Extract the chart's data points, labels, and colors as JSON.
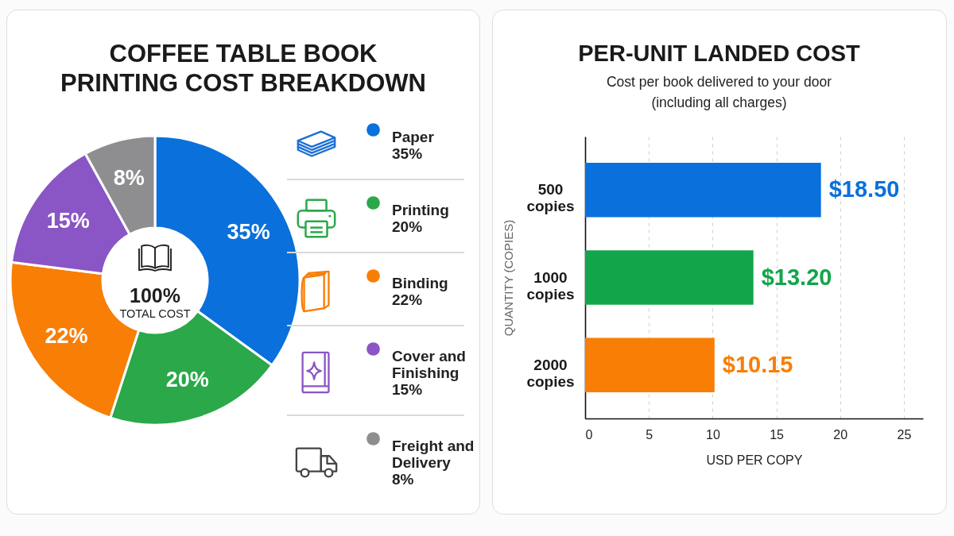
{
  "chart_data": [
    {
      "type": "donut",
      "title": "COFFEE TABLE BOOK PRINTING COST BREAKDOWN",
      "categories": [
        "Paper",
        "Printing",
        "Binding",
        "Cover and Finishing",
        "Freight and Delivery"
      ],
      "values": [
        35,
        20,
        22,
        15,
        8
      ],
      "colors": [
        "#0a70dc",
        "#2aa84a",
        "#f87e06",
        "#8a55c4",
        "#8e8e90"
      ],
      "value_labels": [
        "35%",
        "20%",
        "22%",
        "15%",
        "8%"
      ],
      "legend": "right",
      "annotations": [
        "100%",
        "TOTAL COST"
      ]
    },
    {
      "type": "bar",
      "orientation": "horizontal",
      "title": "PER-UNIT LANDED COST",
      "subtitle": "Cost per book delivered to your door (including all charges)",
      "categories": [
        "500 copies",
        "1000 copies",
        "2000 copies"
      ],
      "values": [
        18.5,
        13.2,
        10.15
      ],
      "colors": [
        "#0a70dc",
        "#12a54a",
        "#f87e06"
      ],
      "value_labels": [
        "$18.50",
        "$13.20",
        "$10.15"
      ],
      "xlabel": "USD PER COPY",
      "ylabel": "QUANTITY (COPIES)",
      "xlim": [
        0,
        26.5
      ],
      "xticks": [
        0,
        5,
        10,
        15,
        20,
        25
      ],
      "grid": "x"
    }
  ]
}
